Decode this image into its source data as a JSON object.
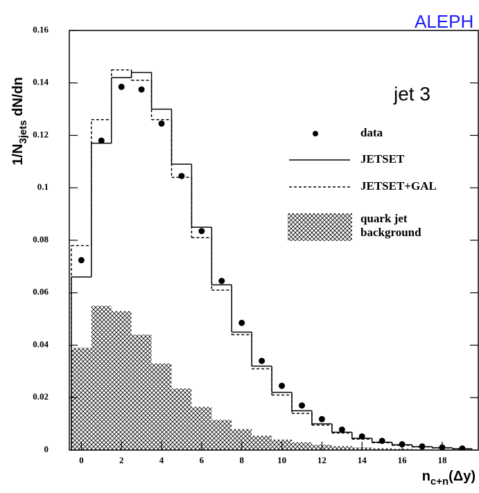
{
  "chart_data": {
    "type": "histogram",
    "title": "ALEPH",
    "annotation": "jet 3",
    "xlabel": {
      "main": "n",
      "sub": "c+n",
      "rest": "(Δy)"
    },
    "ylabel": {
      "main": "1/N",
      "sub": "3jets",
      "rest": " dN/dn"
    },
    "bins": [
      -0.5,
      0.5,
      1.5,
      2.5,
      3.5,
      4.5,
      5.5,
      6.5,
      7.5,
      8.5,
      9.5,
      10.5,
      11.5,
      12.5,
      13.5,
      14.5,
      15.5,
      16.5,
      17.5,
      18.5,
      19.5
    ],
    "series": [
      {
        "name": "data",
        "style": "points",
        "color": "#000000",
        "values": [
          0.0724,
          0.118,
          0.1385,
          0.1375,
          0.1245,
          0.1045,
          0.0835,
          0.0645,
          0.0485,
          0.034,
          0.0245,
          0.017,
          0.0118,
          0.0078,
          0.0052,
          0.0035,
          0.0022,
          0.0014,
          0.001,
          0.0006
        ]
      },
      {
        "name": "JETSET",
        "style": "step",
        "color": "#000000",
        "values": [
          0.066,
          0.117,
          0.142,
          0.144,
          0.13,
          0.109,
          0.085,
          0.063,
          0.045,
          0.032,
          0.022,
          0.015,
          0.01,
          0.0068,
          0.0045,
          0.003,
          0.002,
          0.0013,
          0.0009,
          0.0005
        ]
      },
      {
        "name": "JETSET+GAL",
        "style": "dashed-step",
        "color": "#000000",
        "values": [
          0.078,
          0.126,
          0.145,
          0.141,
          0.126,
          0.104,
          0.081,
          0.061,
          0.044,
          0.031,
          0.021,
          0.014,
          0.0095,
          0.0065,
          0.0042,
          0.0028,
          0.0018,
          0.0012,
          0.0008,
          0.0005
        ]
      },
      {
        "name": "quark jet background",
        "style": "hatched",
        "color": "#000000",
        "values": [
          0.039,
          0.055,
          0.053,
          0.044,
          0.033,
          0.0235,
          0.0165,
          0.0115,
          0.008,
          0.0055,
          0.004,
          0.003,
          0.002,
          0.0015,
          0.001,
          0.0007,
          0.0005,
          0.0003,
          0.0002,
          0.0001
        ]
      }
    ],
    "xlim": [
      -0.6,
      19.8
    ],
    "ylim": [
      0,
      0.16
    ],
    "xticks": [
      0,
      2,
      4,
      6,
      8,
      10,
      12,
      14,
      16,
      18
    ],
    "yticks": [
      0,
      0.02,
      0.04,
      0.06,
      0.08,
      0.1,
      0.12,
      0.14,
      0.16
    ],
    "title_color": "#1a1aff"
  }
}
